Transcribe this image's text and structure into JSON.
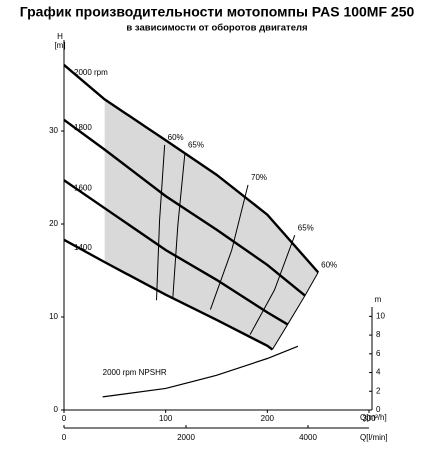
{
  "chart_data": {
    "type": "line",
    "title": "График производительности мотопомпы PAS 100MF 250",
    "subtitle": "в зависимости от оборотов двигателя",
    "y_label": "H",
    "y_unit": "[m]",
    "x_label": "Q[m³/h]",
    "x2_label": "Q[l/min]",
    "y2_label": "m",
    "xlim": [
      0,
      300
    ],
    "xticks": [
      0,
      100,
      200,
      300
    ],
    "x2lim": [
      0,
      5000
    ],
    "x2ticks": [
      0,
      2000,
      4000
    ],
    "ylim": [
      0,
      40
    ],
    "yticks": [
      0,
      10,
      20,
      30
    ],
    "y2lim": [
      0,
      11
    ],
    "y2ticks": [
      0,
      2,
      4,
      6,
      8,
      10
    ],
    "color": "#000000",
    "shade_color": "#d9d9d9",
    "series": [
      {
        "name": "2000 rpm",
        "x": [
          0,
          40,
          100,
          150,
          200,
          250
        ],
        "values": [
          37.1,
          33.4,
          29,
          25.3,
          21,
          14.8
        ]
      },
      {
        "name": "1800",
        "x": [
          0,
          40,
          100,
          150,
          200,
          237
        ],
        "values": [
          31.2,
          28,
          23,
          19.4,
          15.6,
          12.3
        ]
      },
      {
        "name": "1600",
        "x": [
          0,
          40,
          100,
          150,
          200,
          220
        ],
        "values": [
          24.7,
          21.7,
          17.2,
          14,
          10.5,
          9.2
        ]
      },
      {
        "name": "1400",
        "x": [
          0,
          40,
          100,
          150,
          200,
          205
        ],
        "values": [
          18.3,
          15.9,
          12.4,
          9.7,
          6.9,
          6.5
        ]
      },
      {
        "name": "2000 rpm NPSHR",
        "axis": "y2",
        "x": [
          38,
          100,
          150,
          200,
          230
        ],
        "values": [
          1.4,
          2.3,
          3.7,
          5.5,
          6.8
        ]
      }
    ],
    "efficiency_lines": [
      {
        "name": "60%",
        "x": [
          99,
          94,
          91
        ],
        "values": [
          28.5,
          20.4,
          11.8
        ]
      },
      {
        "name": "65%",
        "x": [
          119,
          112,
          107
        ],
        "values": [
          27.7,
          19.9,
          12
        ]
      },
      {
        "name": "70%",
        "x": [
          181,
          165,
          144
        ],
        "values": [
          24.2,
          17.2,
          10.8
        ]
      },
      {
        "name": "65%",
        "x": [
          227,
          207,
          183
        ],
        "values": [
          18.8,
          12.9,
          8.1
        ]
      },
      {
        "name": "60%",
        "x": [
          250,
          237,
          220,
          205
        ],
        "values": [
          14.8,
          12.3,
          9.2,
          6.5
        ]
      }
    ]
  }
}
